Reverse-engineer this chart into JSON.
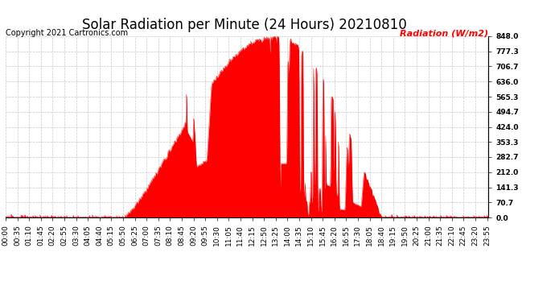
{
  "title": "Solar Radiation per Minute (24 Hours) 20210810",
  "copyright_text": "Copyright 2021 Cartronics.com",
  "ylabel": "Radiation (W/m2)",
  "ylabel_color": "#ff0000",
  "fill_color": "#ff0000",
  "line_color": "#ff0000",
  "background_color": "#ffffff",
  "grid_color": "#c8c8c8",
  "ytick_values": [
    0.0,
    70.7,
    141.3,
    212.0,
    282.7,
    353.3,
    424.0,
    494.7,
    565.3,
    636.0,
    706.7,
    777.3,
    848.0
  ],
  "ymax": 848.0,
  "ymin": 0.0,
  "dashed_zero_color": "#ff0000",
  "title_fontsize": 12,
  "copyright_fontsize": 7,
  "ylabel_fontsize": 8,
  "tick_fontsize": 6.5
}
